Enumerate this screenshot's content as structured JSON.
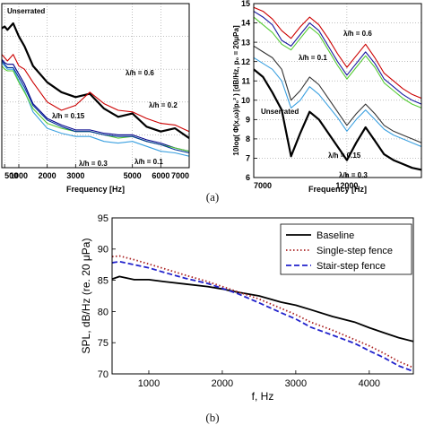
{
  "figure": {
    "label_a": "(a)",
    "label_b": "(b)"
  },
  "chart_data": [
    {
      "type": "line",
      "panel": "a-left",
      "xlabel": "Frequency [Hz]",
      "ylabel": "",
      "xlim": [
        400,
        7000
      ],
      "ylim": [
        0,
        10
      ],
      "xticks": [
        500,
        1000,
        2000,
        3000,
        5000,
        6000,
        7000
      ],
      "xtick_labels": [
        "500",
        "1000",
        "2000",
        "3000",
        "5000",
        "6000",
        "7000"
      ],
      "grid": true,
      "annotations": [
        "Unserrated",
        "λ/h = 0.6",
        "λ/h = 0.2",
        "λ/h = 0.15",
        "λ/h = 0.3",
        "λ/h = 0.1"
      ],
      "series": [
        {
          "color": "#000000",
          "x": [
            400,
            500,
            600,
            800,
            1000,
            1200,
            1500,
            2000,
            2500,
            3000,
            3500,
            4000,
            4500,
            5000,
            5500,
            6000,
            6500,
            7000
          ],
          "y": [
            8.5,
            8.6,
            8.4,
            8.8,
            8.0,
            7.4,
            6.2,
            5.2,
            4.6,
            4.3,
            4.5,
            3.6,
            3.1,
            3.3,
            2.5,
            2.2,
            2.4,
            1.8
          ]
        },
        {
          "color": "#cc0000",
          "x": [
            400,
            500,
            600,
            800,
            1000,
            1200,
            1500,
            2000,
            2500,
            3000,
            3500,
            4000,
            4500,
            5000,
            5500,
            6000,
            6500,
            7000
          ],
          "y": [
            6.9,
            6.7,
            6.5,
            6.9,
            6.2,
            6.0,
            5.2,
            4.0,
            3.5,
            3.8,
            4.6,
            3.9,
            3.5,
            3.4,
            3.0,
            2.7,
            2.6,
            2.2
          ]
        },
        {
          "color": "#00008b",
          "x": [
            400,
            500,
            600,
            800,
            1000,
            1200,
            1500,
            2000,
            2500,
            3000,
            3500,
            4000,
            4500,
            5000,
            5500,
            6000,
            6500,
            7000
          ],
          "y": [
            6.6,
            6.4,
            6.3,
            6.3,
            5.7,
            5.1,
            3.9,
            3.0,
            2.6,
            2.3,
            2.3,
            2.1,
            2.0,
            2.0,
            1.7,
            1.5,
            1.2,
            1.0
          ]
        },
        {
          "color": "#3aa0e0",
          "x": [
            400,
            500,
            600,
            800,
            1000,
            1200,
            1500,
            2000,
            2500,
            3000,
            3500,
            4000,
            4500,
            5000,
            5500,
            6000,
            6500,
            7000
          ],
          "y": [
            6.4,
            6.2,
            6.0,
            6.0,
            5.3,
            4.7,
            3.4,
            2.4,
            2.1,
            1.9,
            1.9,
            1.6,
            1.5,
            1.6,
            1.3,
            1.0,
            0.9,
            0.7
          ]
        },
        {
          "color": "#55cc33",
          "x": [
            400,
            500,
            600,
            800,
            1000,
            1200,
            1500,
            2000,
            2500,
            3000,
            3500,
            4000,
            4500,
            5000,
            5500,
            6000,
            6500,
            7000
          ],
          "y": [
            6.2,
            6.0,
            5.9,
            5.9,
            5.2,
            4.6,
            3.6,
            2.7,
            2.4,
            2.2,
            2.2,
            2.0,
            1.8,
            1.9,
            1.6,
            1.4,
            1.2,
            1.0
          ]
        },
        {
          "color": "#003399",
          "x": [
            400,
            500,
            600,
            800,
            1000,
            1200,
            1500,
            2000,
            2500,
            3000,
            3500,
            4000,
            4500,
            5000,
            5500,
            6000,
            6500,
            7000
          ],
          "y": [
            6.5,
            6.3,
            6.1,
            6.1,
            5.5,
            4.9,
            3.8,
            2.9,
            2.5,
            2.2,
            2.2,
            2.0,
            1.9,
            1.9,
            1.6,
            1.4,
            1.1,
            0.9
          ]
        }
      ]
    },
    {
      "type": "line",
      "panel": "a-right",
      "xlabel": "Frequency [Hz]",
      "ylabel": "10log( Φ(x,ω)/p₀² ) [dB/Hz, p₀ = 20μPa]",
      "xlim": [
        7000,
        16000
      ],
      "ylim": [
        6,
        15
      ],
      "xticks": [
        7000,
        12000
      ],
      "xtick_labels": [
        "7000",
        "12000"
      ],
      "yticks": [
        6,
        7,
        8,
        9,
        10,
        11,
        12,
        13,
        14,
        15
      ],
      "ytick_labels": [
        "6",
        "7",
        "8",
        "9",
        "10",
        "11",
        "12",
        "13",
        "14",
        "15"
      ],
      "grid": true,
      "annotations": [
        "λ/h = 0.6",
        "λ/h = 0.1",
        "Unserrated",
        "λ/h = 0.15",
        "λ/h = 0.3"
      ],
      "series": [
        {
          "color": "#cc0000",
          "x": [
            7000,
            7500,
            8000,
            8500,
            9000,
            9500,
            10000,
            10500,
            11000,
            11500,
            12000,
            12500,
            13000,
            13500,
            14000,
            14500,
            15000,
            15500,
            16000
          ],
          "y": [
            14.8,
            14.6,
            14.2,
            13.6,
            13.2,
            13.8,
            14.3,
            13.9,
            13.2,
            12.4,
            11.7,
            12.3,
            12.9,
            12.2,
            11.4,
            11.0,
            10.6,
            10.3,
            10.1
          ]
        },
        {
          "color": "#1a1aa0",
          "x": [
            7000,
            7500,
            8000,
            8500,
            9000,
            9500,
            10000,
            10500,
            11000,
            11500,
            12000,
            12500,
            13000,
            13500,
            14000,
            14500,
            15000,
            15500,
            16000
          ],
          "y": [
            14.6,
            14.3,
            13.9,
            13.1,
            12.8,
            13.4,
            14.0,
            13.6,
            12.8,
            12.0,
            11.3,
            11.9,
            12.5,
            11.9,
            11.1,
            10.7,
            10.3,
            10.0,
            9.8
          ]
        },
        {
          "color": "#55cc33",
          "x": [
            7000,
            7500,
            8000,
            8500,
            9000,
            9500,
            10000,
            10500,
            11000,
            11500,
            12000,
            12500,
            13000,
            13500,
            14000,
            14500,
            15000,
            15500,
            16000
          ],
          "y": [
            14.3,
            13.9,
            13.5,
            12.9,
            12.6,
            13.2,
            13.8,
            13.4,
            12.6,
            11.8,
            11.1,
            11.7,
            12.3,
            11.7,
            10.9,
            10.5,
            10.1,
            9.8,
            9.6
          ]
        },
        {
          "color": "#3aa0e0",
          "x": [
            7000,
            7500,
            8000,
            8500,
            9000,
            9500,
            10000,
            10500,
            11000,
            11500,
            12000,
            12500,
            13000,
            13500,
            14000,
            14500,
            15000,
            15500,
            16000
          ],
          "y": [
            12.2,
            11.9,
            11.6,
            11.0,
            9.6,
            10.0,
            10.7,
            10.3,
            9.7,
            9.1,
            8.4,
            9.0,
            9.5,
            9.0,
            8.5,
            8.2,
            8.0,
            7.8,
            7.6
          ]
        },
        {
          "color": "#333333",
          "x": [
            7000,
            7500,
            8000,
            8500,
            9000,
            9500,
            10000,
            10500,
            11000,
            11500,
            12000,
            12500,
            13000,
            13500,
            14000,
            14500,
            15000,
            15500,
            16000
          ],
          "y": [
            12.8,
            12.5,
            12.2,
            11.6,
            10.0,
            10.5,
            11.2,
            10.8,
            10.1,
            9.4,
            8.7,
            9.3,
            9.8,
            9.3,
            8.7,
            8.4,
            8.2,
            8.0,
            7.8
          ]
        },
        {
          "color": "#000000",
          "x": [
            7000,
            7500,
            8000,
            8500,
            9000,
            9500,
            10000,
            10500,
            11000,
            11500,
            12000,
            12500,
            13000,
            13500,
            14000,
            14500,
            15000,
            15500,
            16000
          ],
          "y": [
            11.6,
            11.2,
            10.4,
            9.5,
            7.1,
            8.3,
            9.4,
            9.0,
            8.3,
            7.6,
            6.9,
            7.8,
            8.6,
            7.9,
            7.2,
            6.9,
            6.7,
            6.5,
            6.4
          ]
        }
      ]
    },
    {
      "type": "line",
      "panel": "b",
      "xlabel": "f, Hz",
      "ylabel": "SPL, dB/Hz (re. 20 μPa)",
      "xlim": [
        500,
        4600
      ],
      "ylim": [
        70,
        95
      ],
      "xticks": [
        1000,
        2000,
        3000,
        4000
      ],
      "xtick_labels": [
        "1000",
        "2000",
        "3000",
        "4000"
      ],
      "yticks": [
        70,
        75,
        80,
        85,
        90,
        95
      ],
      "ytick_labels": [
        "70",
        "75",
        "80",
        "85",
        "90",
        "95"
      ],
      "grid": false,
      "legend_position": "top-right",
      "series": [
        {
          "name": "Baseline",
          "color": "#000000",
          "dash": "solid",
          "x": [
            500,
            600,
            800,
            1000,
            1200,
            1500,
            1800,
            2000,
            2200,
            2500,
            2800,
            3000,
            3200,
            3500,
            3800,
            4000,
            4200,
            4400,
            4600
          ],
          "y": [
            85.2,
            85.6,
            85.1,
            85.1,
            84.8,
            84.4,
            84.0,
            83.6,
            83.1,
            82.5,
            81.5,
            81.0,
            80.3,
            79.2,
            78.3,
            77.4,
            76.6,
            75.8,
            75.2
          ]
        },
        {
          "name": "Single-step fence",
          "color": "#aa2222",
          "dash": "dotted",
          "x": [
            500,
            600,
            800,
            1000,
            1200,
            1500,
            1800,
            2000,
            2200,
            2500,
            2800,
            3000,
            3200,
            3500,
            3800,
            4000,
            4200,
            4400,
            4600
          ],
          "y": [
            88.8,
            88.9,
            88.3,
            87.6,
            86.9,
            85.8,
            84.8,
            84.0,
            83.2,
            82.0,
            80.5,
            79.5,
            78.3,
            77.0,
            75.5,
            74.5,
            73.3,
            72.0,
            71.0
          ]
        },
        {
          "name": "Stair-step fence",
          "color": "#2222cc",
          "dash": "dashed",
          "x": [
            500,
            600,
            800,
            1000,
            1200,
            1500,
            1800,
            2000,
            2200,
            2500,
            2800,
            3000,
            3200,
            3500,
            3800,
            4000,
            4200,
            4400,
            4600
          ],
          "y": [
            87.8,
            88.0,
            87.5,
            87.0,
            86.3,
            85.3,
            84.5,
            83.7,
            82.9,
            81.4,
            79.8,
            78.8,
            77.5,
            76.2,
            74.9,
            73.7,
            72.6,
            71.3,
            70.4
          ]
        }
      ]
    }
  ]
}
